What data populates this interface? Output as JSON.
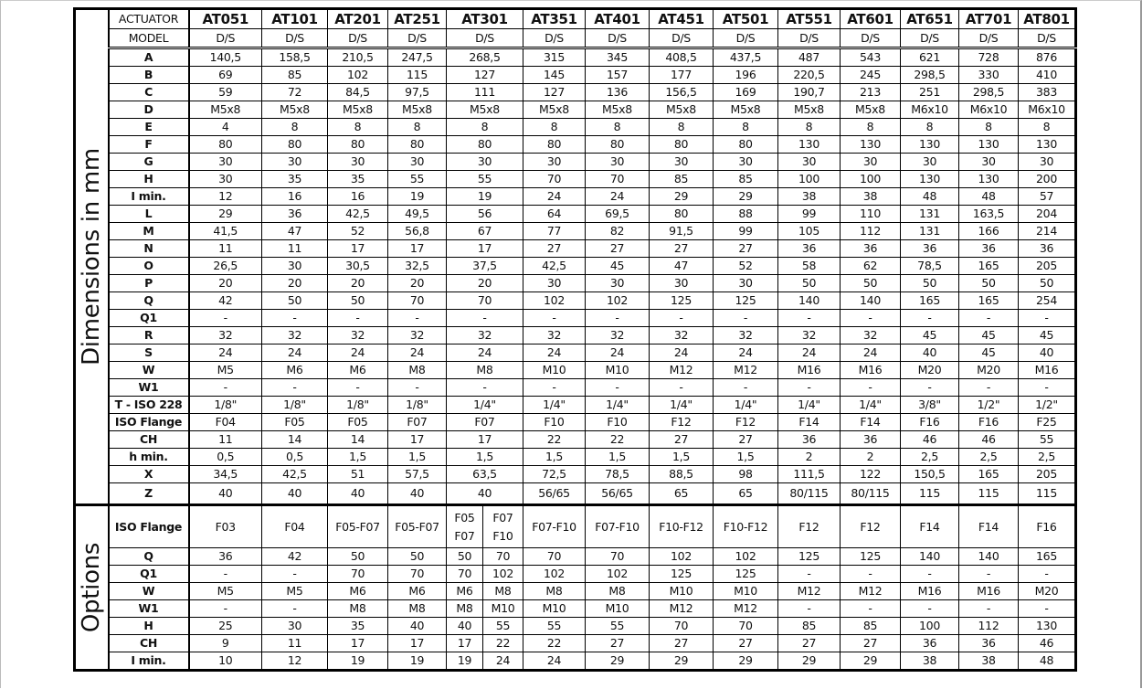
{
  "section_labels": {
    "dimensions": "Dimensions in mm",
    "options": "Options"
  },
  "header": {
    "actuator_label": "ACTUATOR",
    "model_label": "MODEL",
    "actuators": [
      "AT051",
      "AT101",
      "AT201",
      "AT251",
      "AT301",
      "AT351",
      "AT401",
      "AT451",
      "AT501",
      "AT551",
      "AT601",
      "AT651",
      "AT701",
      "AT801"
    ],
    "types": [
      "D/S",
      "D/S",
      "D/S",
      "D/S",
      "D/S",
      "D/S",
      "D/S",
      "D/S",
      "D/S",
      "D/S",
      "D/S",
      "D/S",
      "D/S",
      "D/S"
    ]
  },
  "dimensions": [
    {
      "label": "A",
      "values": [
        "140,5",
        "158,5",
        "210,5",
        "247,5",
        "268,5",
        "315",
        "345",
        "408,5",
        "437,5",
        "487",
        "543",
        "621",
        "728",
        "876"
      ]
    },
    {
      "label": "B",
      "values": [
        "69",
        "85",
        "102",
        "115",
        "127",
        "145",
        "157",
        "177",
        "196",
        "220,5",
        "245",
        "298,5",
        "330",
        "410"
      ]
    },
    {
      "label": "C",
      "values": [
        "59",
        "72",
        "84,5",
        "97,5",
        "111",
        "127",
        "136",
        "156,5",
        "169",
        "190,7",
        "213",
        "251",
        "298,5",
        "383"
      ]
    },
    {
      "label": "D",
      "values": [
        "M5x8",
        "M5x8",
        "M5x8",
        "M5x8",
        "M5x8",
        "M5x8",
        "M5x8",
        "M5x8",
        "M5x8",
        "M5x8",
        "M5x8",
        "M6x10",
        "M6x10",
        "M6x10"
      ]
    },
    {
      "label": "E",
      "values": [
        "4",
        "8",
        "8",
        "8",
        "8",
        "8",
        "8",
        "8",
        "8",
        "8",
        "8",
        "8",
        "8",
        "8"
      ]
    },
    {
      "label": "F",
      "values": [
        "80",
        "80",
        "80",
        "80",
        "80",
        "80",
        "80",
        "80",
        "80",
        "130",
        "130",
        "130",
        "130",
        "130"
      ]
    },
    {
      "label": "G",
      "values": [
        "30",
        "30",
        "30",
        "30",
        "30",
        "30",
        "30",
        "30",
        "30",
        "30",
        "30",
        "30",
        "30",
        "30"
      ]
    },
    {
      "label": "H",
      "values": [
        "30",
        "35",
        "35",
        "55",
        "55",
        "70",
        "70",
        "85",
        "85",
        "100",
        "100",
        "130",
        "130",
        "200"
      ]
    },
    {
      "label": "I min.",
      "values": [
        "12",
        "16",
        "16",
        "19",
        "19",
        "24",
        "24",
        "29",
        "29",
        "38",
        "38",
        "48",
        "48",
        "57"
      ]
    },
    {
      "label": "L",
      "values": [
        "29",
        "36",
        "42,5",
        "49,5",
        "56",
        "64",
        "69,5",
        "80",
        "88",
        "99",
        "110",
        "131",
        "163,5",
        "204"
      ]
    },
    {
      "label": "M",
      "values": [
        "41,5",
        "47",
        "52",
        "56,8",
        "67",
        "77",
        "82",
        "91,5",
        "99",
        "105",
        "112",
        "131",
        "166",
        "214"
      ]
    },
    {
      "label": "N",
      "values": [
        "11",
        "11",
        "17",
        "17",
        "17",
        "27",
        "27",
        "27",
        "27",
        "36",
        "36",
        "36",
        "36",
        "36"
      ]
    },
    {
      "label": "O",
      "values": [
        "26,5",
        "30",
        "30,5",
        "32,5",
        "37,5",
        "42,5",
        "45",
        "47",
        "52",
        "58",
        "62",
        "78,5",
        "165",
        "205"
      ]
    },
    {
      "label": "P",
      "values": [
        "20",
        "20",
        "20",
        "20",
        "20",
        "30",
        "30",
        "30",
        "30",
        "50",
        "50",
        "50",
        "50",
        "50"
      ]
    },
    {
      "label": "Q",
      "values": [
        "42",
        "50",
        "50",
        "70",
        "70",
        "102",
        "102",
        "125",
        "125",
        "140",
        "140",
        "165",
        "165",
        "254"
      ]
    },
    {
      "label": "Q1",
      "values": [
        "-",
        "-",
        "-",
        "-",
        "-",
        "-",
        "-",
        "-",
        "-",
        "-",
        "-",
        "-",
        "-",
        "-"
      ]
    },
    {
      "label": "R",
      "values": [
        "32",
        "32",
        "32",
        "32",
        "32",
        "32",
        "32",
        "32",
        "32",
        "32",
        "32",
        "45",
        "45",
        "45"
      ]
    },
    {
      "label": "S",
      "values": [
        "24",
        "24",
        "24",
        "24",
        "24",
        "24",
        "24",
        "24",
        "24",
        "24",
        "24",
        "40",
        "45",
        "40"
      ]
    },
    {
      "label": "W",
      "values": [
        "M5",
        "M6",
        "M6",
        "M8",
        "M8",
        "M10",
        "M10",
        "M12",
        "M12",
        "M16",
        "M16",
        "M20",
        "M20",
        "M16"
      ]
    },
    {
      "label": "W1",
      "values": [
        "-",
        "-",
        "-",
        "-",
        "-",
        "-",
        "-",
        "-",
        "-",
        "-",
        "-",
        "-",
        "-",
        "-"
      ]
    },
    {
      "label": "T - ISO 228",
      "values": [
        "1/8\"",
        "1/8\"",
        "1/8\"",
        "1/8\"",
        "1/4\"",
        "1/4\"",
        "1/4\"",
        "1/4\"",
        "1/4\"",
        "1/4\"",
        "1/4\"",
        "3/8\"",
        "1/2\"",
        "1/2\""
      ]
    },
    {
      "label": "ISO Flange",
      "values": [
        "F04",
        "F05",
        "F05",
        "F07",
        "F07",
        "F10",
        "F10",
        "F12",
        "F12",
        "F14",
        "F14",
        "F16",
        "F16",
        "F25"
      ]
    },
    {
      "label": "CH",
      "values": [
        "11",
        "14",
        "14",
        "17",
        "17",
        "22",
        "22",
        "27",
        "27",
        "36",
        "36",
        "46",
        "46",
        "55"
      ]
    },
    {
      "label": "h min.",
      "values": [
        "0,5",
        "0,5",
        "1,5",
        "1,5",
        "1,5",
        "1,5",
        "1,5",
        "1,5",
        "1,5",
        "2",
        "2",
        "2,5",
        "2,5",
        "2,5"
      ]
    },
    {
      "label": "X",
      "values": [
        "34,5",
        "42,5",
        "51",
        "57,5",
        "63,5",
        "72,5",
        "78,5",
        "88,5",
        "98",
        "111,5",
        "122",
        "150,5",
        "165",
        "205"
      ]
    },
    {
      "label": "Z",
      "values": [
        "40",
        "40",
        "40",
        "40",
        "40",
        "56/65",
        "56/65",
        "65",
        "65",
        "80/115",
        "80/115",
        "115",
        "115",
        "115"
      ]
    }
  ],
  "options": [
    {
      "label": "ISO Flange",
      "values": [
        "F03",
        "F04",
        "F05-F07",
        "F05-F07",
        "F05\nF07",
        "F07\nF10",
        "F07-F10",
        "F07-F10",
        "F10-F12",
        "F10-F12",
        "F12",
        "F12",
        "F14",
        "F14",
        "F16"
      ]
    },
    {
      "label": "Q",
      "values": [
        "36",
        "42",
        "50",
        "50",
        "50",
        "70",
        "70",
        "70",
        "102",
        "102",
        "125",
        "125",
        "140",
        "140",
        "165"
      ]
    },
    {
      "label": "Q1",
      "values": [
        "-",
        "-",
        "70",
        "70",
        "70",
        "102",
        "102",
        "102",
        "125",
        "125",
        "-",
        "-",
        "-",
        "-",
        "-"
      ]
    },
    {
      "label": "W",
      "values": [
        "M5",
        "M5",
        "M6",
        "M6",
        "M6",
        "M8",
        "M8",
        "M8",
        "M10",
        "M10",
        "M12",
        "M12",
        "M16",
        "M16",
        "M20"
      ]
    },
    {
      "label": "W1",
      "values": [
        "-",
        "-",
        "M8",
        "M8",
        "M8",
        "M10",
        "M10",
        "M10",
        "M12",
        "M12",
        "-",
        "-",
        "-",
        "-",
        "-"
      ]
    },
    {
      "label": "H",
      "values": [
        "25",
        "30",
        "35",
        "40",
        "40",
        "55",
        "55",
        "55",
        "70",
        "70",
        "85",
        "85",
        "100",
        "112",
        "130"
      ]
    },
    {
      "label": "CH",
      "values": [
        "9",
        "11",
        "17",
        "17",
        "17",
        "22",
        "22",
        "27",
        "27",
        "27",
        "27",
        "27",
        "36",
        "36",
        "46"
      ]
    },
    {
      "label": "I min.",
      "values": [
        "10",
        "12",
        "19",
        "19",
        "19",
        "24",
        "24",
        "29",
        "29",
        "29",
        "29",
        "29",
        "38",
        "38",
        "48"
      ]
    }
  ]
}
